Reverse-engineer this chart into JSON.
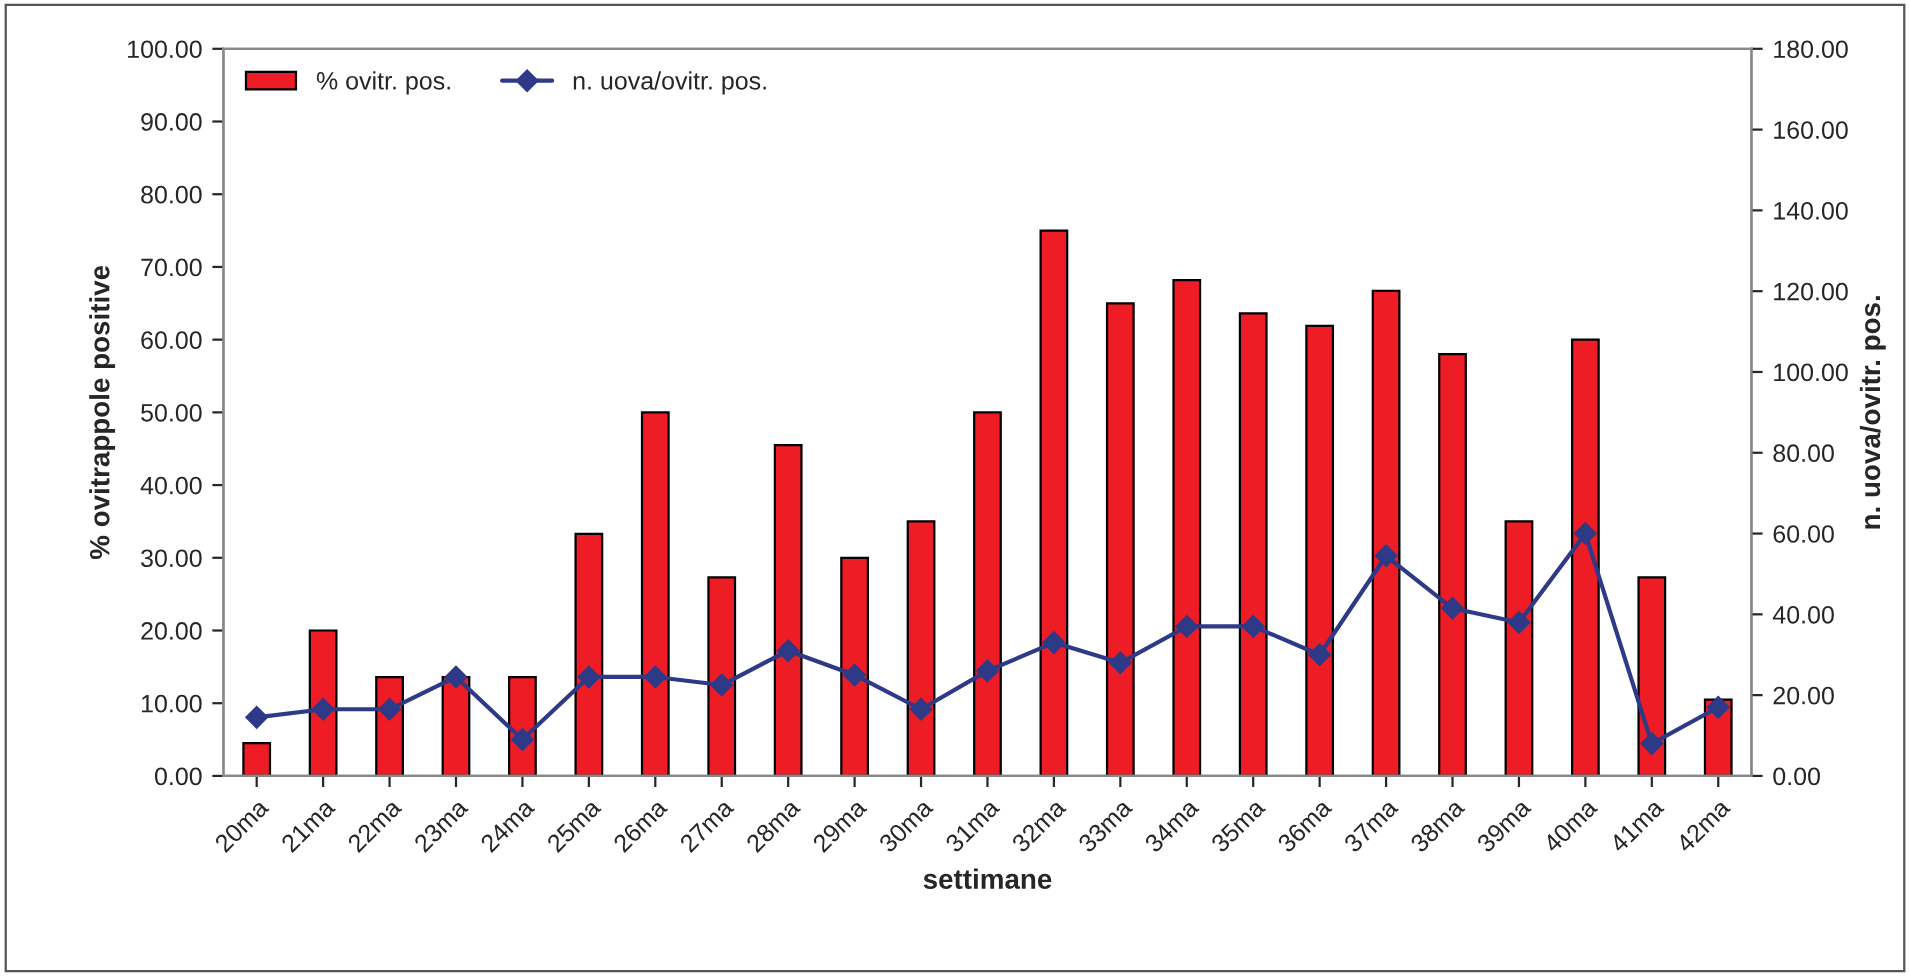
{
  "chart_data": {
    "type": "bar",
    "xlabel": "settimane",
    "ylabel": "% ovitrappole positive",
    "y2label": "n. uova/ovitr. pos.",
    "categories": [
      "20ma",
      "21ma",
      "22ma",
      "23ma",
      "24ma",
      "25ma",
      "26ma",
      "27ma",
      "28ma",
      "29ma",
      "30ma",
      "31ma",
      "32ma",
      "33ma",
      "34ma",
      "35ma",
      "36ma",
      "37ma",
      "38ma",
      "39ma",
      "40ma",
      "41ma",
      "42ma"
    ],
    "series": [
      {
        "name": "% ovitr. pos.",
        "color": "#ee1c25",
        "values": [
          4.5,
          20,
          13.6,
          13.6,
          13.6,
          33.3,
          50,
          27.3,
          45.5,
          30,
          35,
          50,
          75,
          65,
          68.2,
          63.6,
          61.9,
          66.7,
          58,
          35,
          60,
          27.3,
          10.5
        ]
      },
      {
        "name": "n. uova/ovitr. pos.",
        "type": "line",
        "axis": "y2",
        "color": "#2e3a87",
        "marker": "diamond",
        "values": [
          14.5,
          16.5,
          16.5,
          24.5,
          9,
          24.5,
          24.5,
          22.5,
          31,
          25,
          16.5,
          26,
          33,
          28,
          37,
          37,
          30,
          54.5,
          41.5,
          38,
          60,
          8,
          17
        ]
      }
    ],
    "ylim": [
      0,
      100
    ],
    "yticks": [
      {
        "value": 0,
        "label": "0.00"
      },
      {
        "value": 10,
        "label": "10.00"
      },
      {
        "value": 20,
        "label": "20.00"
      },
      {
        "value": 30,
        "label": "30.00"
      },
      {
        "value": 40,
        "label": "40.00"
      },
      {
        "value": 50,
        "label": "50.00"
      },
      {
        "value": 60,
        "label": "60.00"
      },
      {
        "value": 70,
        "label": "70.00"
      },
      {
        "value": 80,
        "label": "80.00"
      },
      {
        "value": 90,
        "label": "90.00"
      },
      {
        "value": 100,
        "label": "100.00"
      }
    ],
    "y2lim": [
      0,
      180
    ],
    "y2ticks": [
      {
        "value": 0,
        "label": "0.00"
      },
      {
        "value": 20,
        "label": "20.00"
      },
      {
        "value": 40,
        "label": "40.00"
      },
      {
        "value": 60,
        "label": "60.00"
      },
      {
        "value": 80,
        "label": "80.00"
      },
      {
        "value": 100,
        "label": "100.00"
      },
      {
        "value": 120,
        "label": "120.00"
      },
      {
        "value": 140,
        "label": "140.00"
      },
      {
        "value": 160,
        "label": "160.00"
      },
      {
        "value": 180,
        "label": "180.00"
      }
    ],
    "legend": "top left",
    "grid": false
  }
}
